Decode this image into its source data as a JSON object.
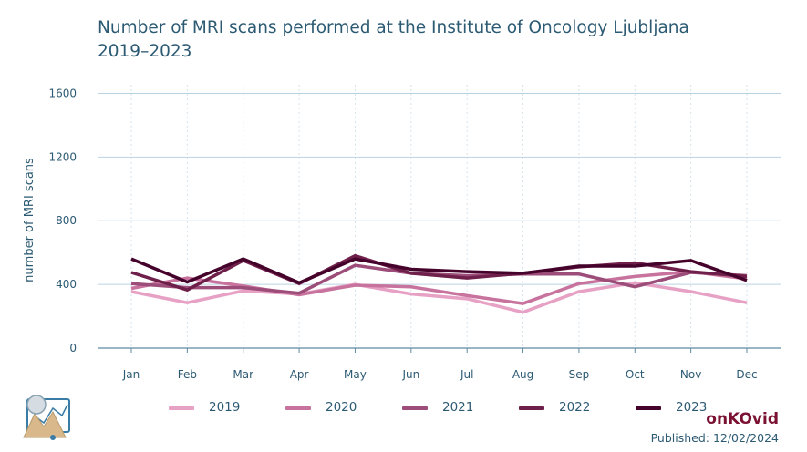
{
  "header": {
    "title_line1": "Number of MRI scans performed at the Institute of Oncology Ljubljana",
    "title_line2": "2019–2023"
  },
  "footer": {
    "brand": "onKOvid",
    "published": "Published: 12/02/2024",
    "logo_icon": "landscape-chart-icon"
  },
  "chart_data": {
    "type": "line",
    "title": "Number of MRI scans performed at the Institute of Oncology Ljubljana 2019–2023",
    "xlabel": "",
    "ylabel": "number of MRI scans",
    "ylim": [
      0,
      1700
    ],
    "yticks": [
      0,
      400,
      800,
      1200,
      1600
    ],
    "grid": true,
    "legend_position": "bottom",
    "categories": [
      "Jan",
      "Feb",
      "Mar",
      "Apr",
      "May",
      "Jun",
      "Jul",
      "Aug",
      "Sep",
      "Oct",
      "Nov",
      "Dec"
    ],
    "series": [
      {
        "name": "2019",
        "color": "#e7a1c5",
        "values": [
          355,
          285,
          360,
          340,
          400,
          340,
          310,
          225,
          355,
          410,
          355,
          285
        ]
      },
      {
        "name": "2020",
        "color": "#c8739d",
        "values": [
          375,
          440,
          390,
          335,
          395,
          385,
          330,
          280,
          405,
          450,
          480,
          435
        ]
      },
      {
        "name": "2021",
        "color": "#9c4d79",
        "values": [
          405,
          380,
          380,
          345,
          520,
          470,
          455,
          465,
          465,
          385,
          475,
          455
        ]
      },
      {
        "name": "2022",
        "color": "#6e1f4a",
        "values": [
          475,
          365,
          550,
          405,
          580,
          470,
          440,
          470,
          510,
          535,
          480,
          450
        ]
      },
      {
        "name": "2023",
        "color": "#45032b",
        "values": [
          560,
          415,
          560,
          410,
          560,
          495,
          480,
          470,
          515,
          515,
          550,
          425
        ]
      }
    ]
  }
}
